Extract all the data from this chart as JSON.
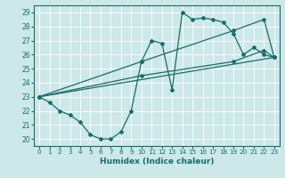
{
  "xlabel": "Humidex (Indice chaleur)",
  "bg_color": "#cce8e8",
  "line_color": "#1a6b6b",
  "grid_color": "#ffffff",
  "xlim": [
    -0.5,
    23.5
  ],
  "ylim": [
    19.5,
    29.5
  ],
  "xticks": [
    0,
    1,
    2,
    3,
    4,
    5,
    6,
    7,
    8,
    9,
    10,
    11,
    12,
    13,
    14,
    15,
    16,
    17,
    18,
    19,
    20,
    21,
    22,
    23
  ],
  "yticks": [
    20,
    21,
    22,
    23,
    24,
    25,
    26,
    27,
    28,
    29
  ],
  "line_wavy": {
    "x": [
      0,
      1,
      2,
      3,
      4,
      5,
      6,
      7,
      8,
      9,
      10,
      11,
      12,
      13,
      14,
      15,
      16,
      17,
      18,
      19,
      20,
      21,
      22,
      23
    ],
    "y": [
      23,
      22.6,
      22.0,
      21.7,
      21.2,
      20.3,
      20.0,
      20.0,
      20.5,
      22.0,
      25.5,
      27.0,
      26.8,
      23.5,
      29.0,
      28.5,
      28.6,
      28.5,
      28.3,
      27.5,
      26.0,
      26.5,
      26.0,
      25.8
    ]
  },
  "line_upper": {
    "x": [
      0,
      10,
      19,
      22,
      23
    ],
    "y": [
      23.0,
      25.5,
      27.7,
      28.5,
      25.8
    ]
  },
  "line_mid": {
    "x": [
      0,
      10,
      19,
      22,
      23
    ],
    "y": [
      23.0,
      24.5,
      25.5,
      26.3,
      25.8
    ]
  },
  "line_low": {
    "x": [
      0,
      23
    ],
    "y": [
      23.0,
      25.8
    ]
  }
}
